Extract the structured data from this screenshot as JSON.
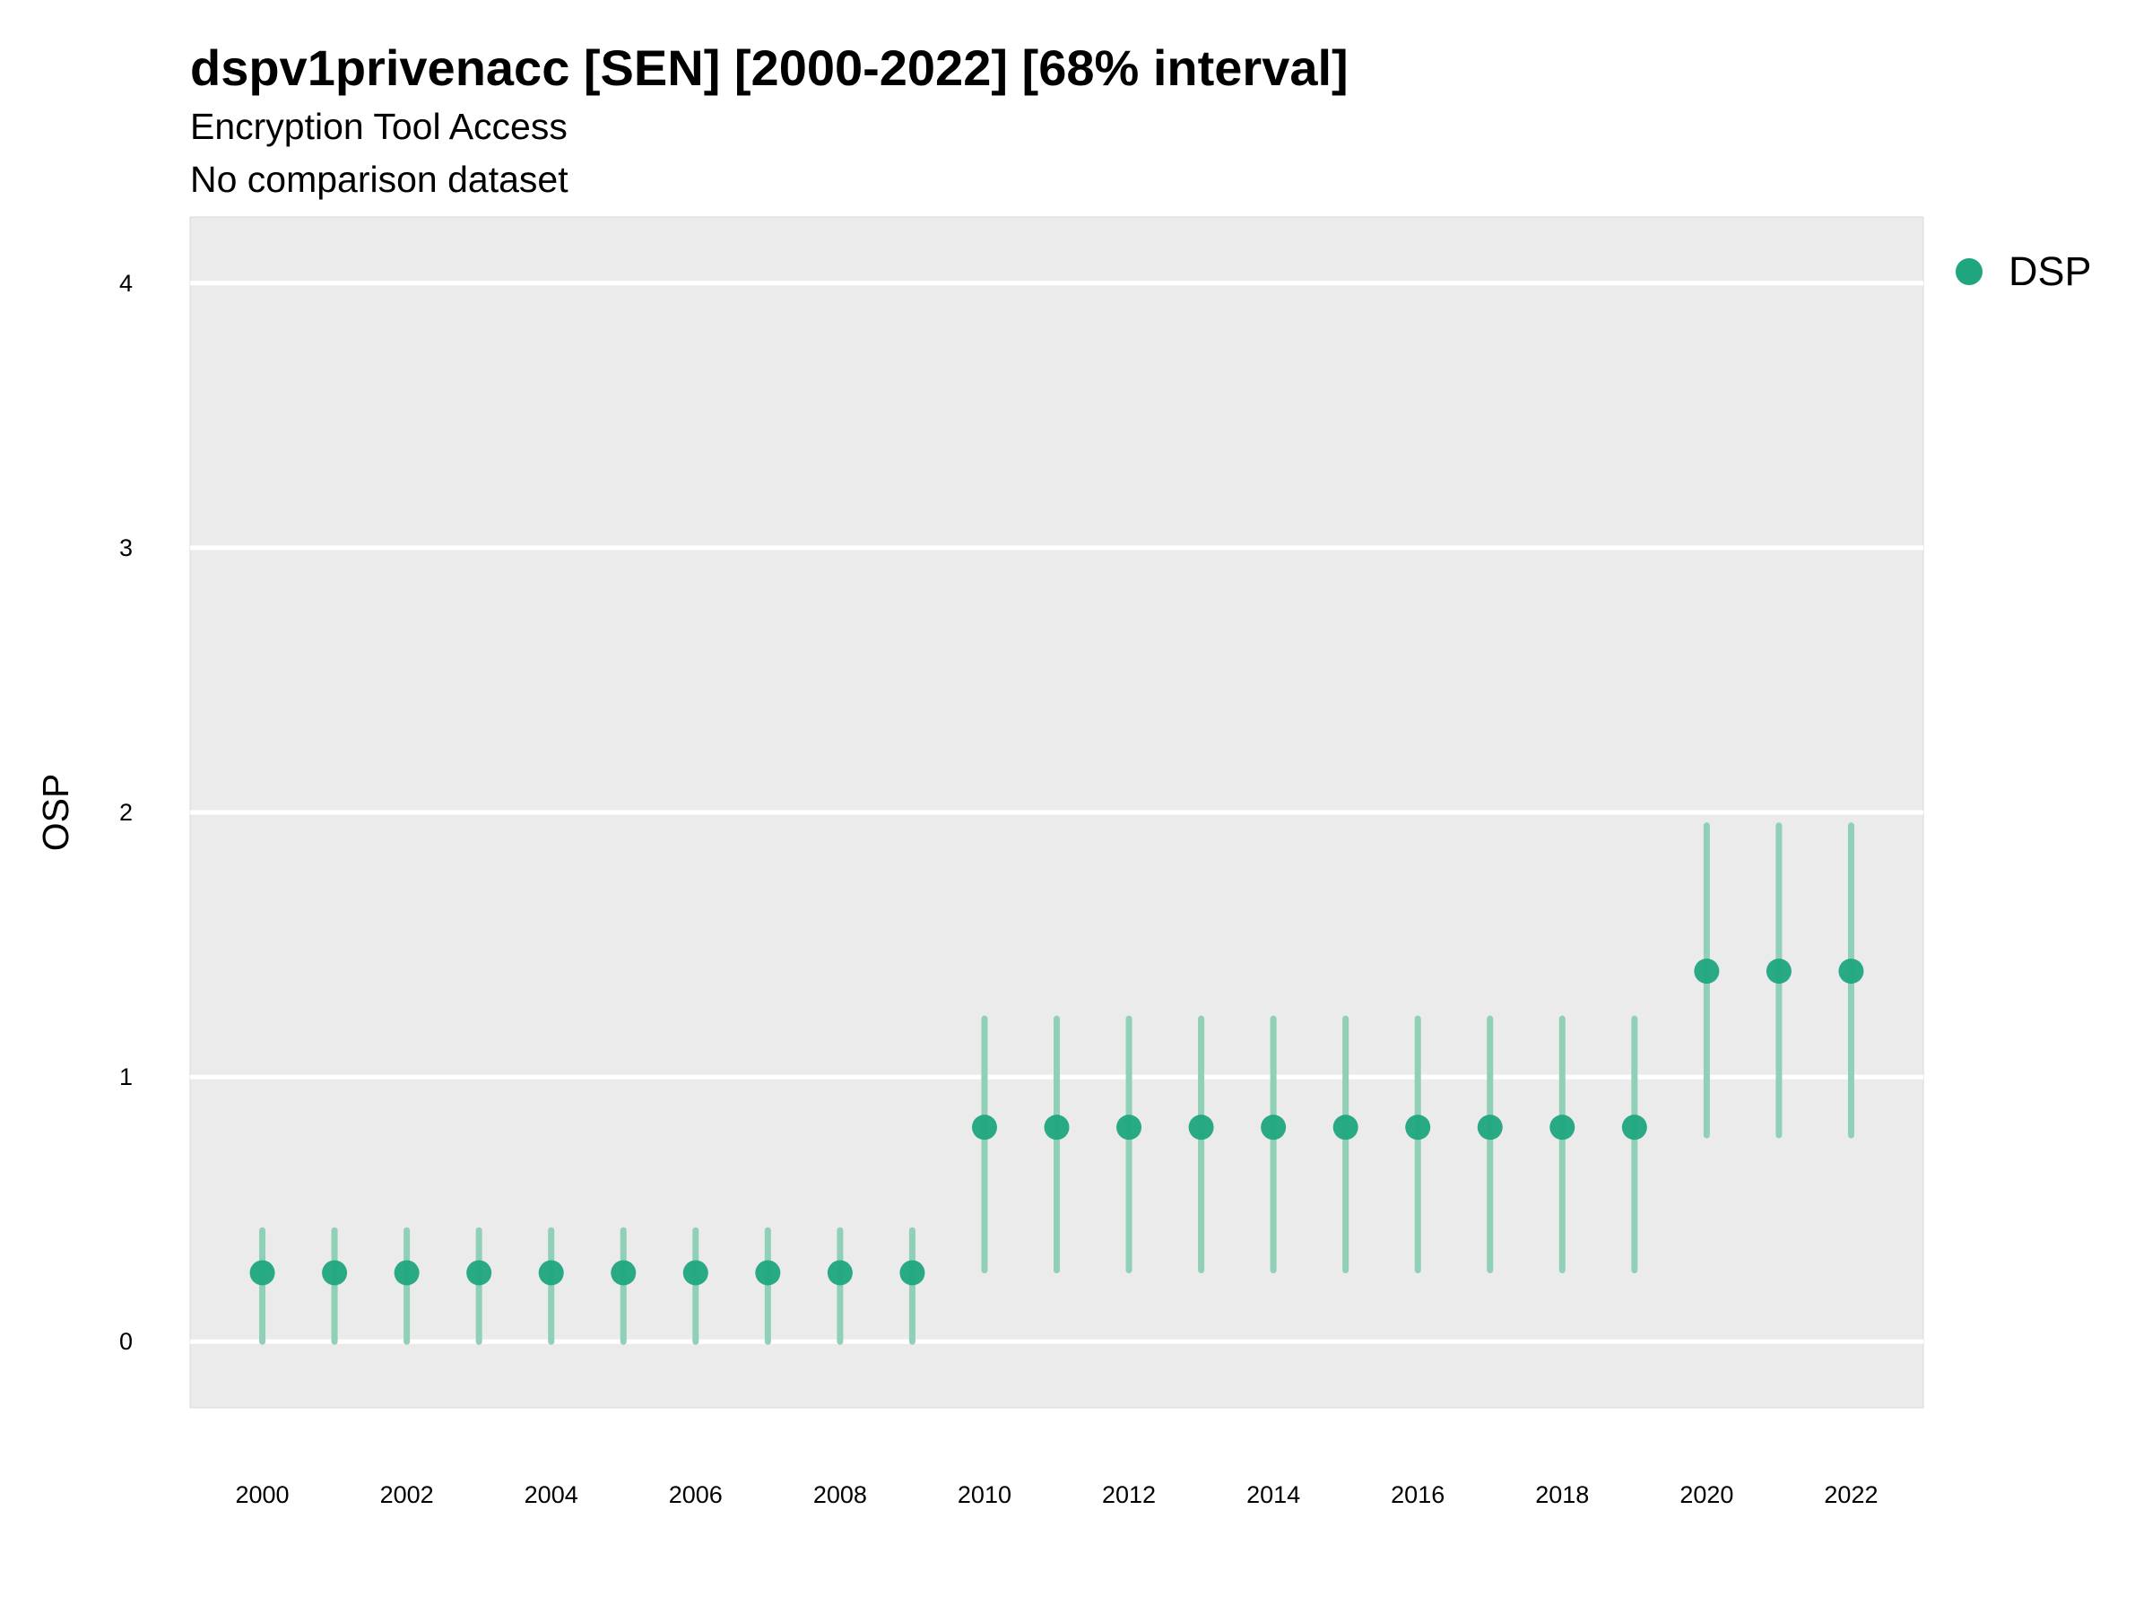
{
  "chart_data": {
    "type": "scatter",
    "title": "dspv1privenacc [SEN] [2000-2022] [68% interval]",
    "subtitle": "Encryption Tool Access",
    "subtitle2": "No comparison dataset",
    "xlabel": "",
    "ylabel": "OSP",
    "ylim": [
      -0.25,
      4.25
    ],
    "xlim": [
      1999,
      2023
    ],
    "y_ticks": [
      "0",
      "1",
      "2",
      "3",
      "4"
    ],
    "x_ticks": [
      "2000",
      "2002",
      "2004",
      "2006",
      "2008",
      "2010",
      "2012",
      "2014",
      "2016",
      "2018",
      "2020",
      "2022"
    ],
    "grid": true,
    "legend_position": "right",
    "series": [
      {
        "name": "DSP",
        "color": "#1fa67e",
        "interval_color": "#8fd0b6",
        "x": [
          2000,
          2001,
          2002,
          2003,
          2004,
          2005,
          2006,
          2007,
          2008,
          2009,
          2010,
          2011,
          2012,
          2013,
          2014,
          2015,
          2016,
          2017,
          2018,
          2019,
          2020,
          2021,
          2022
        ],
        "y": [
          0.26,
          0.26,
          0.26,
          0.26,
          0.26,
          0.26,
          0.26,
          0.26,
          0.26,
          0.26,
          0.81,
          0.81,
          0.81,
          0.81,
          0.81,
          0.81,
          0.81,
          0.81,
          0.81,
          0.81,
          1.4,
          1.4,
          1.4
        ],
        "lower": [
          0.0,
          0.0,
          0.0,
          0.0,
          0.0,
          0.0,
          0.0,
          0.0,
          0.0,
          0.0,
          0.27,
          0.27,
          0.27,
          0.27,
          0.27,
          0.27,
          0.27,
          0.27,
          0.27,
          0.27,
          0.78,
          0.78,
          0.78
        ],
        "upper": [
          0.42,
          0.42,
          0.42,
          0.42,
          0.42,
          0.42,
          0.42,
          0.42,
          0.42,
          0.42,
          1.22,
          1.22,
          1.22,
          1.22,
          1.22,
          1.22,
          1.22,
          1.22,
          1.22,
          1.22,
          1.95,
          1.95,
          1.95
        ]
      }
    ]
  }
}
